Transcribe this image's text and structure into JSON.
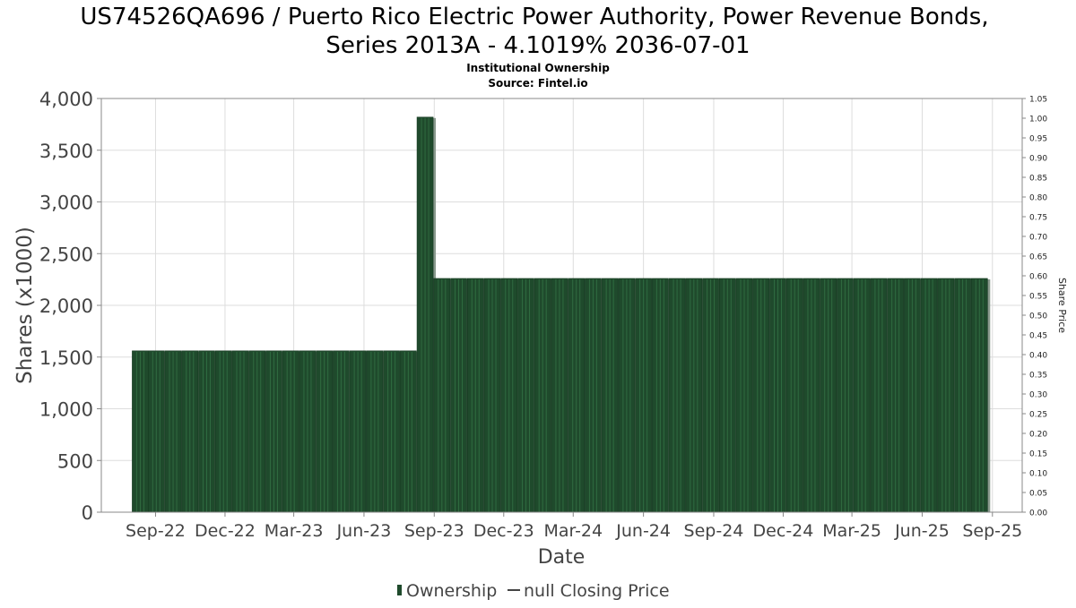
{
  "chart_data": {
    "type": "bar",
    "title_lines": [
      "US74526QA696 / Puerto Rico Electric Power Authority, Power Revenue Bonds,",
      "Series 2013A - 4.1019% 2036-07-01"
    ],
    "subtitle_lines": [
      "Institutional Ownership",
      "Source: Fintel.io"
    ],
    "xlabel": "Date",
    "ylabel": "Shares (x1000)",
    "y2label": "Share Price",
    "ylim": [
      0,
      4000
    ],
    "yticks": [
      {
        "value": 0,
        "label": "0"
      },
      {
        "value": 500,
        "label": "500"
      },
      {
        "value": 1000,
        "label": "1,000"
      },
      {
        "value": 1500,
        "label": "1,500"
      },
      {
        "value": 2000,
        "label": "2,000"
      },
      {
        "value": 2500,
        "label": "2,500"
      },
      {
        "value": 3000,
        "label": "3,000"
      },
      {
        "value": 3500,
        "label": "3,500"
      },
      {
        "value": 4000,
        "label": "4,000"
      }
    ],
    "y2lim": [
      0,
      1.05
    ],
    "y2ticks": [
      "0.00",
      "0.05",
      "0.10",
      "0.15",
      "0.20",
      "0.25",
      "0.30",
      "0.35",
      "0.40",
      "0.45",
      "0.50",
      "0.55",
      "0.60",
      "0.65",
      "0.70",
      "0.75",
      "0.80",
      "0.85",
      "0.90",
      "0.95",
      "1.00",
      "1.05"
    ],
    "xlim": [
      "2022-06-22",
      "2025-10-10"
    ],
    "xticks": [
      {
        "date": "2022-09-01",
        "label": "Sep-22"
      },
      {
        "date": "2022-12-01",
        "label": "Dec-22"
      },
      {
        "date": "2023-03-01",
        "label": "Mar-23"
      },
      {
        "date": "2023-06-01",
        "label": "Jun-23"
      },
      {
        "date": "2023-09-01",
        "label": "Sep-23"
      },
      {
        "date": "2023-12-01",
        "label": "Dec-23"
      },
      {
        "date": "2024-03-01",
        "label": "Mar-24"
      },
      {
        "date": "2024-06-01",
        "label": "Jun-24"
      },
      {
        "date": "2024-09-01",
        "label": "Sep-24"
      },
      {
        "date": "2024-12-01",
        "label": "Dec-24"
      },
      {
        "date": "2025-03-01",
        "label": "Mar-25"
      },
      {
        "date": "2025-06-01",
        "label": "Jun-25"
      },
      {
        "date": "2025-09-01",
        "label": "Sep-25"
      }
    ],
    "grid": true,
    "legend_position": "bottom",
    "legend": [
      {
        "label": "Ownership",
        "kind": "bar"
      },
      {
        "label": "null Closing Price",
        "kind": "line"
      }
    ],
    "series": [
      {
        "name": "Ownership",
        "color": "#1f4a2c",
        "shadow_color": "#8a9a8e",
        "points": [
          {
            "date": "2022-08-12",
            "value": 1560
          },
          {
            "date": "2022-09-02",
            "value": 1560
          },
          {
            "date": "2022-09-24",
            "value": 1560
          },
          {
            "date": "2022-10-16",
            "value": 1560
          },
          {
            "date": "2022-11-07",
            "value": 1560
          },
          {
            "date": "2022-11-29",
            "value": 1560
          },
          {
            "date": "2022-12-21",
            "value": 1560
          },
          {
            "date": "2023-01-12",
            "value": 1560
          },
          {
            "date": "2023-02-03",
            "value": 1560
          },
          {
            "date": "2023-02-25",
            "value": 1560
          },
          {
            "date": "2023-03-19",
            "value": 1560
          },
          {
            "date": "2023-04-10",
            "value": 1560
          },
          {
            "date": "2023-05-02",
            "value": 1560
          },
          {
            "date": "2023-05-24",
            "value": 1560
          },
          {
            "date": "2023-06-15",
            "value": 1560
          },
          {
            "date": "2023-07-07",
            "value": 1560
          },
          {
            "date": "2023-07-29",
            "value": 1560
          },
          {
            "date": "2023-08-20",
            "value": 3820
          },
          {
            "date": "2023-09-11",
            "value": 2260
          },
          {
            "date": "2023-10-03",
            "value": 2260
          },
          {
            "date": "2023-10-25",
            "value": 2260
          },
          {
            "date": "2023-11-16",
            "value": 2260
          },
          {
            "date": "2023-12-08",
            "value": 2260
          },
          {
            "date": "2023-12-30",
            "value": 2260
          },
          {
            "date": "2024-01-21",
            "value": 2260
          },
          {
            "date": "2024-02-12",
            "value": 2260
          },
          {
            "date": "2024-03-05",
            "value": 2260
          },
          {
            "date": "2024-03-27",
            "value": 2260
          },
          {
            "date": "2024-04-18",
            "value": 2260
          },
          {
            "date": "2024-05-10",
            "value": 2260
          },
          {
            "date": "2024-06-01",
            "value": 2260
          },
          {
            "date": "2024-06-23",
            "value": 2260
          },
          {
            "date": "2024-07-15",
            "value": 2260
          },
          {
            "date": "2024-08-06",
            "value": 2260
          },
          {
            "date": "2024-08-28",
            "value": 2260
          },
          {
            "date": "2024-09-19",
            "value": 2260
          },
          {
            "date": "2024-10-11",
            "value": 2260
          },
          {
            "date": "2024-11-02",
            "value": 2260
          },
          {
            "date": "2024-11-24",
            "value": 2260
          },
          {
            "date": "2024-12-16",
            "value": 2260
          },
          {
            "date": "2025-01-07",
            "value": 2260
          },
          {
            "date": "2025-01-29",
            "value": 2260
          },
          {
            "date": "2025-02-20",
            "value": 2260
          },
          {
            "date": "2025-03-14",
            "value": 2260
          },
          {
            "date": "2025-04-05",
            "value": 2260
          },
          {
            "date": "2025-04-27",
            "value": 2260
          },
          {
            "date": "2025-05-19",
            "value": 2260
          },
          {
            "date": "2025-06-10",
            "value": 2260
          },
          {
            "date": "2025-07-02",
            "value": 2260
          },
          {
            "date": "2025-07-24",
            "value": 2260
          },
          {
            "date": "2025-08-15",
            "value": 2260
          }
        ]
      },
      {
        "name": "null Closing Price",
        "color": "#444444",
        "points": []
      }
    ]
  }
}
